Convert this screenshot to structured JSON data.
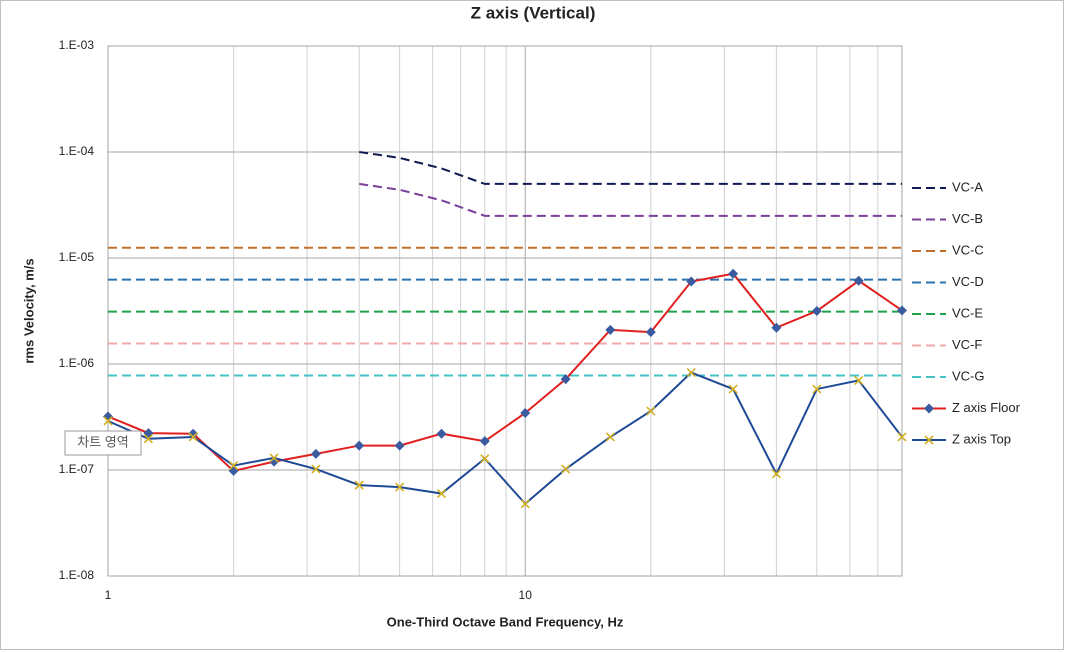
{
  "chart_data": {
    "type": "line",
    "title": "Z axis (Vertical)",
    "x_label": "One-Third Octave Band Frequency, Hz",
    "y_label": "rms Velocity, m/s",
    "tooltip": "차트 영역",
    "log_x": true,
    "log_y": true,
    "grid": true,
    "legend": "right",
    "x": [
      1,
      1.25,
      1.6,
      2,
      2.5,
      3.15,
      4,
      5,
      6.3,
      8,
      10,
      12.5,
      16,
      20,
      25,
      31.5,
      40,
      50,
      63,
      80
    ],
    "xlim": [
      1,
      80
    ],
    "xticks": [
      1,
      10
    ],
    "xminorticks": [
      2,
      3,
      4,
      5,
      6,
      7,
      8,
      9,
      20,
      30,
      40,
      50,
      60,
      70,
      80
    ],
    "ylim": [
      1e-08,
      0.001
    ],
    "yticks": [
      {
        "value": 1e-08,
        "label": "1.E-08"
      },
      {
        "value": 1e-07,
        "label": "1.E-07"
      },
      {
        "value": 1e-06,
        "label": "1.E-06"
      },
      {
        "value": 1e-05,
        "label": "1.E-05"
      },
      {
        "value": 0.0001,
        "label": "1.E-04"
      },
      {
        "value": 0.001,
        "label": "1.E-03"
      }
    ],
    "series": [
      {
        "name": "VC-A",
        "color": "#101a52",
        "dash": true,
        "values": [
          null,
          null,
          null,
          null,
          null,
          null,
          0.0001,
          8.8e-05,
          7e-05,
          5e-05,
          5e-05,
          5e-05,
          5e-05,
          5e-05,
          5e-05,
          5e-05,
          5e-05,
          5e-05,
          5e-05,
          5e-05
        ]
      },
      {
        "name": "VC-B",
        "color": "#7a3f98",
        "dash": true,
        "values": [
          null,
          null,
          null,
          null,
          null,
          null,
          5e-05,
          4.4e-05,
          3.5e-05,
          2.5e-05,
          2.5e-05,
          2.5e-05,
          2.5e-05,
          2.5e-05,
          2.5e-05,
          2.5e-05,
          2.5e-05,
          2.5e-05,
          2.5e-05,
          2.5e-05
        ]
      },
      {
        "name": "VC-C",
        "color": "#c0702a",
        "dash": true,
        "values": [
          1.25e-05,
          1.25e-05,
          1.25e-05,
          1.25e-05,
          1.25e-05,
          1.25e-05,
          1.25e-05,
          1.25e-05,
          1.25e-05,
          1.25e-05,
          1.25e-05,
          1.25e-05,
          1.25e-05,
          1.25e-05,
          1.25e-05,
          1.25e-05,
          1.25e-05,
          1.25e-05,
          1.25e-05,
          1.25e-05
        ]
      },
      {
        "name": "VC-D",
        "color": "#2a72b0",
        "dash": true,
        "values": [
          6.25e-06,
          6.25e-06,
          6.25e-06,
          6.25e-06,
          6.25e-06,
          6.25e-06,
          6.25e-06,
          6.25e-06,
          6.25e-06,
          6.25e-06,
          6.25e-06,
          6.25e-06,
          6.25e-06,
          6.25e-06,
          6.25e-06,
          6.25e-06,
          6.25e-06,
          6.25e-06,
          6.25e-06,
          6.25e-06
        ]
      },
      {
        "name": "VC-E",
        "color": "#1ea24a",
        "dash": true,
        "values": [
          3.12e-06,
          3.12e-06,
          3.12e-06,
          3.12e-06,
          3.12e-06,
          3.12e-06,
          3.12e-06,
          3.12e-06,
          3.12e-06,
          3.12e-06,
          3.12e-06,
          3.12e-06,
          3.12e-06,
          3.12e-06,
          3.12e-06,
          3.12e-06,
          3.12e-06,
          3.12e-06,
          3.12e-06,
          3.12e-06
        ]
      },
      {
        "name": "VC-F",
        "color": "#f2a9a9",
        "dash": true,
        "values": [
          1.56e-06,
          1.56e-06,
          1.56e-06,
          1.56e-06,
          1.56e-06,
          1.56e-06,
          1.56e-06,
          1.56e-06,
          1.56e-06,
          1.56e-06,
          1.56e-06,
          1.56e-06,
          1.56e-06,
          1.56e-06,
          1.56e-06,
          1.56e-06,
          1.56e-06,
          1.56e-06,
          1.56e-06,
          1.56e-06
        ]
      },
      {
        "name": "VC-G",
        "color": "#45c2c4",
        "dash": true,
        "values": [
          7.8e-07,
          7.8e-07,
          7.8e-07,
          7.8e-07,
          7.8e-07,
          7.8e-07,
          7.8e-07,
          7.8e-07,
          7.8e-07,
          7.8e-07,
          7.8e-07,
          7.8e-07,
          7.8e-07,
          7.8e-07,
          7.8e-07,
          7.8e-07,
          7.8e-07,
          7.8e-07,
          7.8e-07,
          7.8e-07
        ]
      },
      {
        "name": "Z axis Floor",
        "color": "#e0201e",
        "marker": "diamond",
        "marker_color": "#3a5ba0",
        "values": [
          3.2e-07,
          2.23e-07,
          2.2e-07,
          9.8e-08,
          1.2e-07,
          1.42e-07,
          1.7e-07,
          1.7e-07,
          2.2e-07,
          1.87e-07,
          3.45e-07,
          7.2e-07,
          2.1e-06,
          2e-06,
          6e-06,
          7.1e-06,
          2.2e-06,
          3.16e-06,
          6.1e-06,
          3.2e-06
        ]
      },
      {
        "name": "Z axis Top",
        "color": "#1f4a96",
        "marker": "x",
        "marker_color": "#d2b020",
        "values": [
          2.9e-07,
          1.97e-07,
          2.05e-07,
          1.1e-07,
          1.3e-07,
          1.02e-07,
          7.2e-08,
          6.9e-08,
          6e-08,
          1.28e-07,
          4.8e-08,
          1.02e-07,
          2.05e-07,
          3.6e-07,
          8.3e-07,
          5.8e-07,
          9.2e-08,
          5.8e-07,
          7e-07,
          2.05e-07
        ]
      }
    ]
  }
}
